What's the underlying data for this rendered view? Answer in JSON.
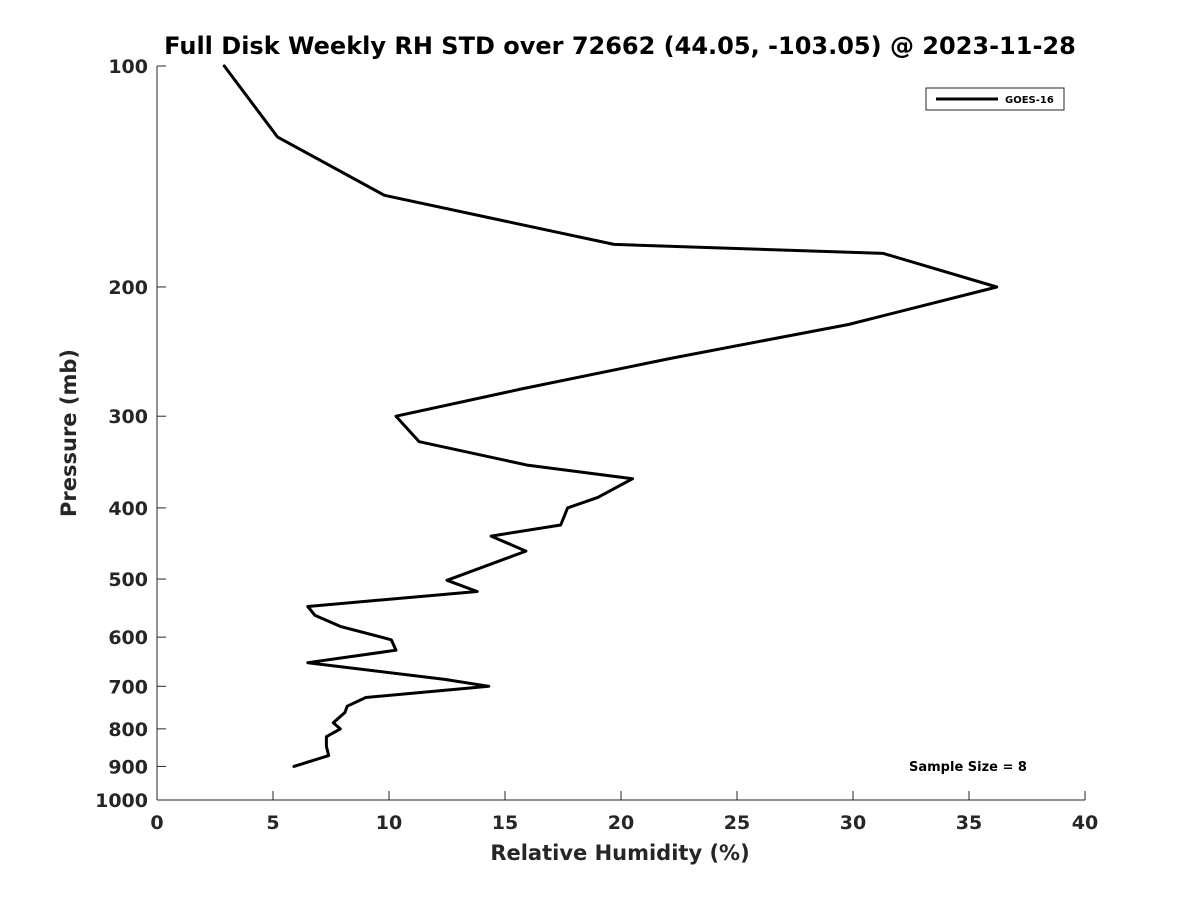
{
  "chart_data": {
    "type": "line",
    "title": "Full Disk Weekly RH STD over 72662 (44.05, -103.05) @ 2023-11-28",
    "xlabel": "Relative Humidity (%)",
    "ylabel": "Pressure (mb)",
    "xlim": [
      0,
      40
    ],
    "ylim": [
      100,
      1000
    ],
    "y_scale": "log",
    "y_reversed": true,
    "grid": false,
    "legend_position": "top-right",
    "x_ticks": [
      "0",
      "5",
      "10",
      "15",
      "20",
      "25",
      "30",
      "35",
      "40"
    ],
    "y_ticks": [
      "100",
      "200",
      "300",
      "400",
      "500",
      "600",
      "700",
      "800",
      "900",
      "1000"
    ],
    "series": [
      {
        "name": "GOES-16",
        "color": "#000000",
        "x": [
          2.9,
          5.2,
          9.8,
          19.7,
          31.3,
          36.2,
          29.8,
          22.2,
          15.8,
          10.3,
          11.3,
          16.0,
          20.5,
          19.0,
          17.7,
          17.4,
          14.4,
          15.9,
          12.5,
          13.8,
          6.5,
          6.8,
          7.9,
          10.1,
          10.3,
          6.5,
          12.4,
          14.3,
          9.0,
          8.2,
          8.1,
          7.6,
          7.9,
          7.3,
          7.3,
          7.4,
          5.9
        ],
        "y": [
          100,
          125,
          150,
          175,
          180,
          200,
          225,
          250,
          275,
          300,
          325,
          350,
          365,
          387,
          400,
          422,
          437,
          458,
          502,
          520,
          545,
          560,
          580,
          605,
          625,
          650,
          685,
          700,
          725,
          745,
          760,
          785,
          800,
          820,
          845,
          870,
          900
        ]
      }
    ],
    "legend": [
      {
        "label": "GOES-16",
        "color": "#000000"
      }
    ],
    "annotation": "Sample Size = 8"
  }
}
